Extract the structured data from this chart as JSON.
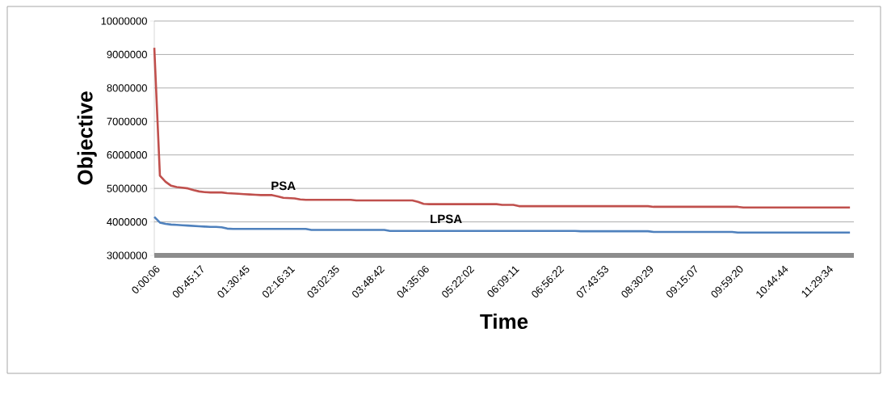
{
  "chart_data": {
    "type": "line",
    "xlabel": "Time",
    "ylabel": "Objective",
    "categories": [
      "0:00:06",
      null,
      null,
      null,
      null,
      null,
      null,
      null,
      "00:45:17",
      null,
      null,
      null,
      null,
      null,
      null,
      null,
      "01:30:45",
      null,
      null,
      null,
      null,
      null,
      null,
      null,
      "02:16:31",
      null,
      null,
      null,
      null,
      null,
      null,
      null,
      "03:02:35",
      null,
      null,
      null,
      null,
      null,
      null,
      null,
      "03:48:42",
      null,
      null,
      null,
      null,
      null,
      null,
      null,
      "04:35:06",
      null,
      null,
      null,
      null,
      null,
      null,
      null,
      "05:22:02",
      null,
      null,
      null,
      null,
      null,
      null,
      null,
      "06:09:11",
      null,
      null,
      null,
      null,
      null,
      null,
      null,
      "06:56:22",
      null,
      null,
      null,
      null,
      null,
      null,
      null,
      "07:43:53",
      null,
      null,
      null,
      null,
      null,
      null,
      null,
      "08:30:29",
      null,
      null,
      null,
      null,
      null,
      null,
      null,
      "09:15:07",
      null,
      null,
      null,
      null,
      null,
      null,
      null,
      "09:59:20",
      null,
      null,
      null,
      null,
      null,
      null,
      null,
      "10:44:44",
      null,
      null,
      null,
      null,
      null,
      null,
      null,
      "11:29:34",
      null,
      null,
      null,
      null
    ],
    "series": [
      {
        "name": "PSA",
        "color": "#c0504d",
        "values": [
          9200000,
          5380000,
          5200000,
          5080000,
          5040000,
          5020000,
          5000000,
          4950000,
          4910000,
          4890000,
          4880000,
          4880000,
          4880000,
          4860000,
          4850000,
          4840000,
          4830000,
          4820000,
          4810000,
          4800000,
          4800000,
          4800000,
          4760000,
          4720000,
          4710000,
          4700000,
          4670000,
          4660000,
          4660000,
          4660000,
          4660000,
          4660000,
          4660000,
          4660000,
          4660000,
          4660000,
          4640000,
          4640000,
          4640000,
          4640000,
          4640000,
          4640000,
          4640000,
          4640000,
          4640000,
          4640000,
          4640000,
          4600000,
          4540000,
          4530000,
          4530000,
          4530000,
          4530000,
          4530000,
          4530000,
          4530000,
          4530000,
          4530000,
          4530000,
          4530000,
          4530000,
          4530000,
          4510000,
          4510000,
          4510000,
          4470000,
          4470000,
          4470000,
          4470000,
          4470000,
          4470000,
          4470000,
          4470000,
          4470000,
          4470000,
          4470000,
          4470000,
          4470000,
          4470000,
          4470000,
          4470000,
          4470000,
          4470000,
          4470000,
          4470000,
          4470000,
          4470000,
          4470000,
          4470000,
          4450000,
          4450000,
          4450000,
          4450000,
          4450000,
          4450000,
          4450000,
          4450000,
          4450000,
          4450000,
          4450000,
          4450000,
          4450000,
          4450000,
          4450000,
          4450000,
          4430000,
          4430000,
          4430000,
          4430000,
          4430000,
          4430000,
          4430000,
          4430000,
          4430000,
          4430000,
          4430000,
          4430000,
          4430000,
          4430000,
          4430000,
          4430000,
          4430000,
          4430000,
          4430000,
          4430000
        ]
      },
      {
        "name": "LPSA",
        "color": "#4f81bd",
        "values": [
          4150000,
          3980000,
          3940000,
          3920000,
          3910000,
          3900000,
          3890000,
          3880000,
          3870000,
          3860000,
          3850000,
          3850000,
          3840000,
          3800000,
          3790000,
          3790000,
          3790000,
          3790000,
          3790000,
          3790000,
          3790000,
          3790000,
          3790000,
          3790000,
          3790000,
          3790000,
          3790000,
          3790000,
          3760000,
          3760000,
          3760000,
          3760000,
          3760000,
          3760000,
          3760000,
          3760000,
          3760000,
          3760000,
          3760000,
          3760000,
          3760000,
          3760000,
          3730000,
          3730000,
          3730000,
          3730000,
          3730000,
          3730000,
          3730000,
          3730000,
          3730000,
          3730000,
          3730000,
          3730000,
          3730000,
          3730000,
          3730000,
          3730000,
          3730000,
          3730000,
          3730000,
          3730000,
          3730000,
          3730000,
          3730000,
          3730000,
          3730000,
          3730000,
          3730000,
          3730000,
          3730000,
          3730000,
          3730000,
          3730000,
          3730000,
          3730000,
          3720000,
          3720000,
          3720000,
          3720000,
          3720000,
          3720000,
          3720000,
          3720000,
          3720000,
          3720000,
          3720000,
          3720000,
          3720000,
          3700000,
          3700000,
          3700000,
          3700000,
          3700000,
          3700000,
          3700000,
          3700000,
          3700000,
          3700000,
          3700000,
          3700000,
          3700000,
          3700000,
          3700000,
          3680000,
          3680000,
          3680000,
          3680000,
          3680000,
          3680000,
          3680000,
          3680000,
          3680000,
          3680000,
          3680000,
          3680000,
          3680000,
          3680000,
          3680000,
          3680000,
          3680000,
          3680000,
          3680000,
          3680000,
          3680000
        ]
      }
    ],
    "ylim": [
      3000000,
      10000000
    ],
    "yticks": [
      3000000,
      4000000,
      5000000,
      6000000,
      7000000,
      8000000,
      9000000,
      10000000
    ],
    "grid": "y"
  }
}
